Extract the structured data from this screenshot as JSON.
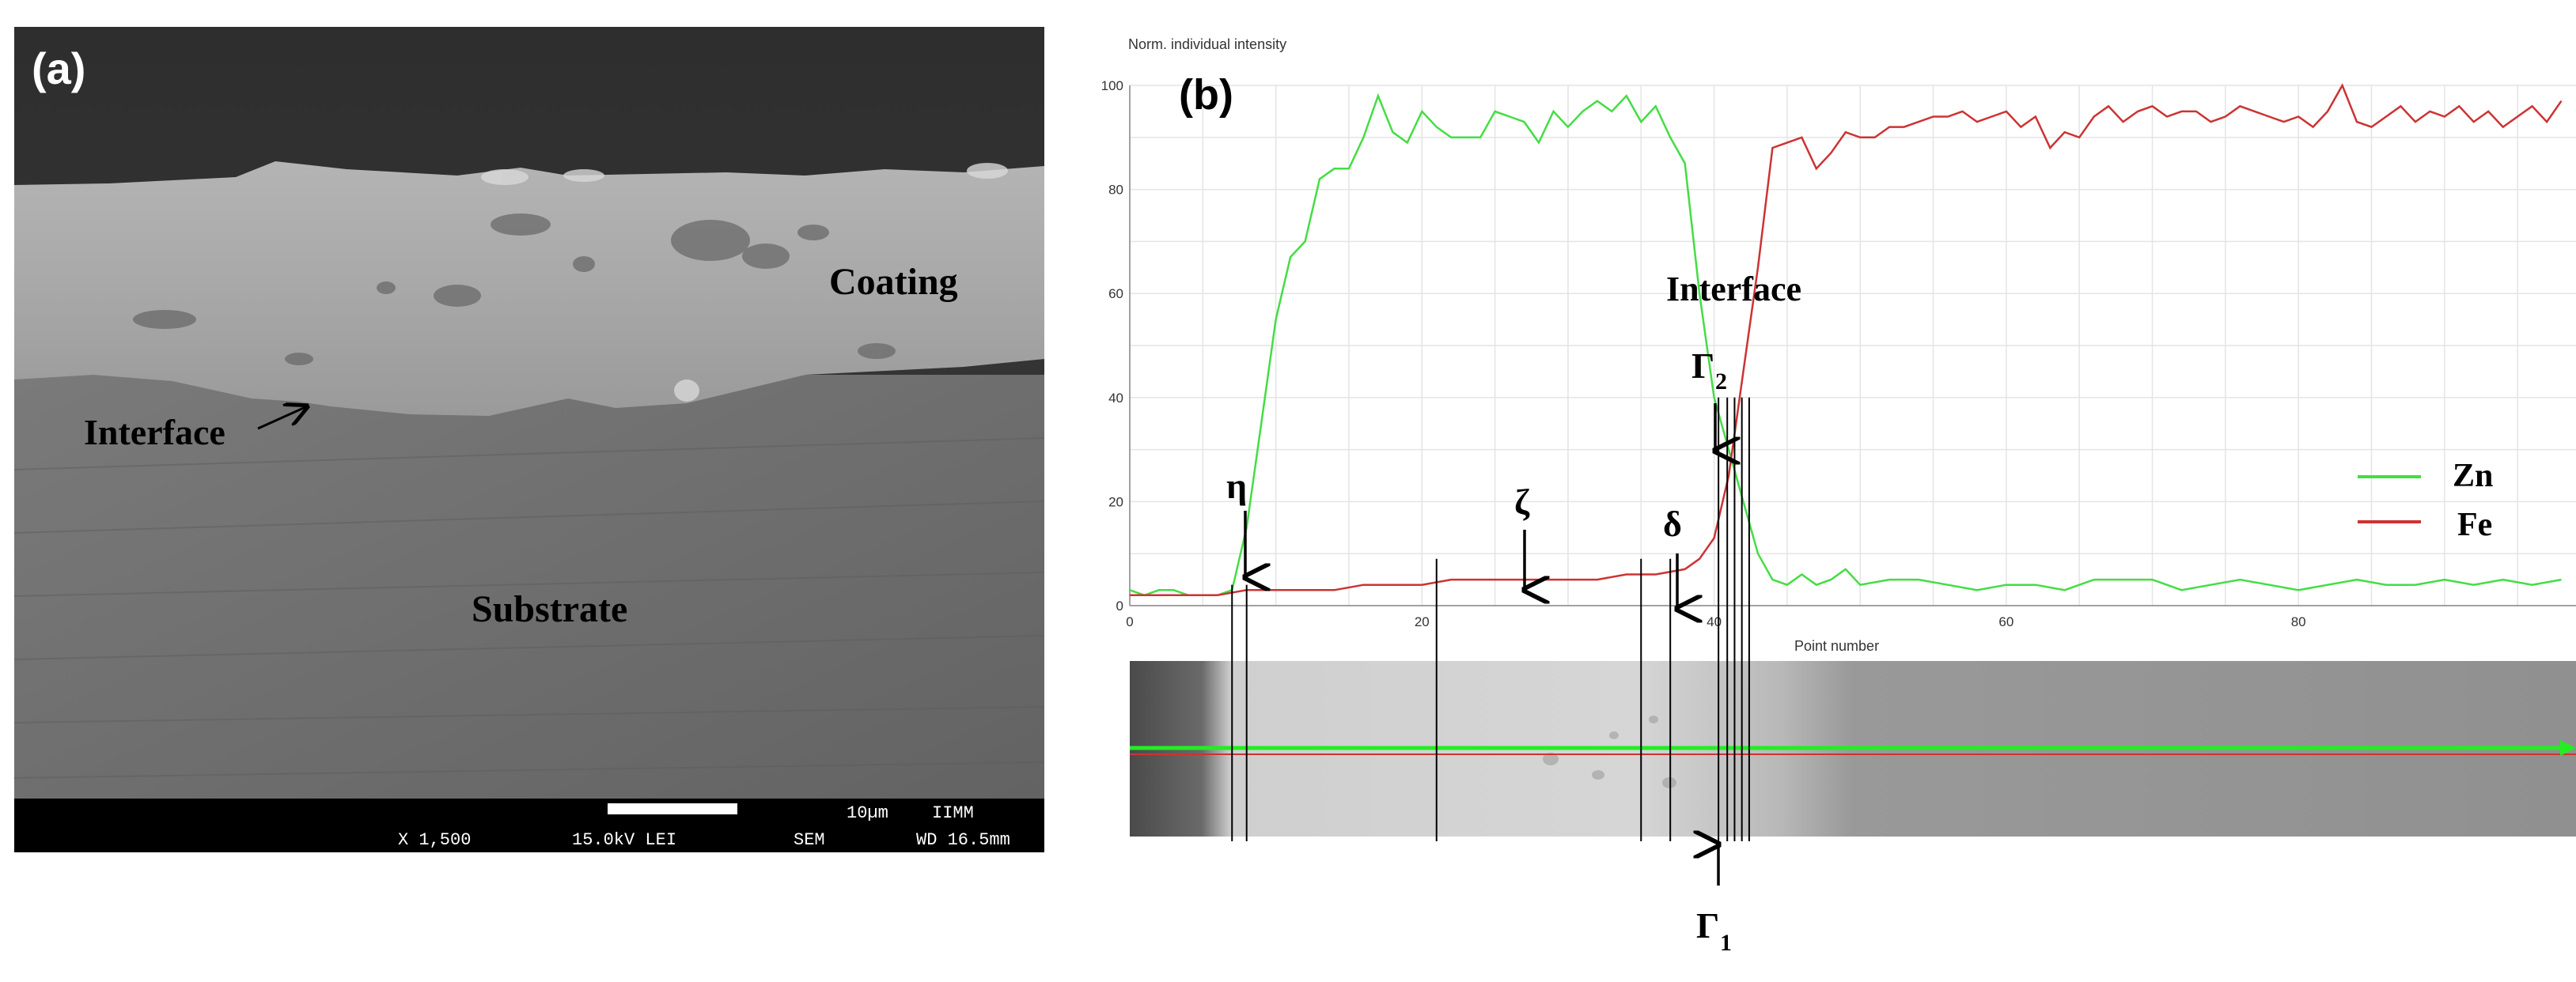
{
  "panel_a": {
    "label": "(a)",
    "coating_label": "Coating",
    "interface_label": "Interface",
    "substrate_label": "Substrate",
    "scalebar_text": "10µm",
    "institute": "IIMM",
    "magnification": "X 1,500",
    "voltage": "15.0kV LEI",
    "detector": "SEM",
    "working_distance": "WD 16.5mm"
  },
  "panel_b": {
    "label": "(b)",
    "interface_label": "Interface",
    "phase_eta": "η",
    "phase_zeta": "ζ",
    "phase_delta": "δ",
    "phase_gamma2": "Γ",
    "phase_gamma2_sub": "2",
    "phase_gamma1": "Γ",
    "phase_gamma1_sub": "1"
  },
  "chart_data": {
    "type": "line",
    "title": "",
    "ylabel": "Norm. individual intensity",
    "xlabel": "Point number",
    "xlim": [
      0,
      99
    ],
    "ylim": [
      0,
      100
    ],
    "x_ticks": [
      0,
      20,
      40,
      60,
      80
    ],
    "y_ticks": [
      0,
      20,
      40,
      60,
      80,
      100
    ],
    "grid": true,
    "legend_position": "right",
    "colors": {
      "Zn": "#44dd44",
      "Fe": "#cc3333"
    },
    "series": [
      {
        "name": "Zn",
        "x": [
          0,
          1,
          2,
          3,
          4,
          5,
          6,
          7,
          8,
          9,
          10,
          11,
          12,
          13,
          14,
          15,
          16,
          17,
          18,
          19,
          20,
          21,
          22,
          23,
          24,
          25,
          26,
          27,
          28,
          29,
          30,
          31,
          32,
          33,
          34,
          35,
          36,
          37,
          38,
          39,
          40,
          41,
          42,
          43,
          44,
          45,
          46,
          47,
          48,
          49,
          50,
          52,
          54,
          56,
          58,
          60,
          62,
          64,
          66,
          68,
          70,
          72,
          74,
          76,
          78,
          80,
          82,
          84,
          86,
          88,
          90,
          92,
          94,
          96,
          98
        ],
        "values": [
          3,
          2,
          3,
          3,
          2,
          2,
          2,
          3,
          15,
          35,
          55,
          67,
          70,
          82,
          84,
          84,
          90,
          98,
          91,
          89,
          95,
          92,
          90,
          90,
          90,
          95,
          94,
          93,
          89,
          95,
          92,
          95,
          97,
          95,
          98,
          93,
          96,
          90,
          85,
          60,
          40,
          30,
          20,
          10,
          5,
          4,
          6,
          4,
          5,
          7,
          4,
          5,
          5,
          4,
          3,
          4,
          4,
          3,
          5,
          5,
          5,
          3,
          4,
          5,
          4,
          3,
          4,
          5,
          4,
          4,
          5,
          4,
          5,
          4,
          5
        ]
      },
      {
        "name": "Fe",
        "x": [
          0,
          2,
          4,
          6,
          8,
          10,
          12,
          14,
          16,
          18,
          20,
          22,
          24,
          26,
          28,
          30,
          32,
          34,
          36,
          38,
          39,
          40,
          41,
          42,
          43,
          44,
          45,
          46,
          47,
          48,
          49,
          50,
          51,
          52,
          53,
          54,
          55,
          56,
          57,
          58,
          59,
          60,
          61,
          62,
          63,
          64,
          65,
          66,
          67,
          68,
          69,
          70,
          71,
          72,
          73,
          74,
          75,
          76,
          77,
          78,
          79,
          80,
          81,
          82,
          83,
          84,
          85,
          86,
          87,
          88,
          89,
          90,
          91,
          92,
          93,
          94,
          95,
          96,
          97,
          98
        ],
        "values": [
          2,
          2,
          2,
          2,
          3,
          3,
          3,
          3,
          4,
          4,
          4,
          5,
          5,
          5,
          5,
          5,
          5,
          6,
          6,
          7,
          9,
          13,
          25,
          45,
          65,
          88,
          89,
          90,
          84,
          87,
          91,
          90,
          90,
          92,
          92,
          93,
          94,
          94,
          95,
          93,
          94,
          95,
          92,
          94,
          88,
          91,
          90,
          94,
          96,
          93,
          95,
          96,
          94,
          95,
          95,
          93,
          94,
          96,
          95,
          94,
          93,
          94,
          92,
          95,
          100,
          93,
          92,
          94,
          96,
          93,
          95,
          94,
          96,
          93,
          95,
          92,
          94,
          96,
          93,
          97
        ]
      }
    ]
  }
}
